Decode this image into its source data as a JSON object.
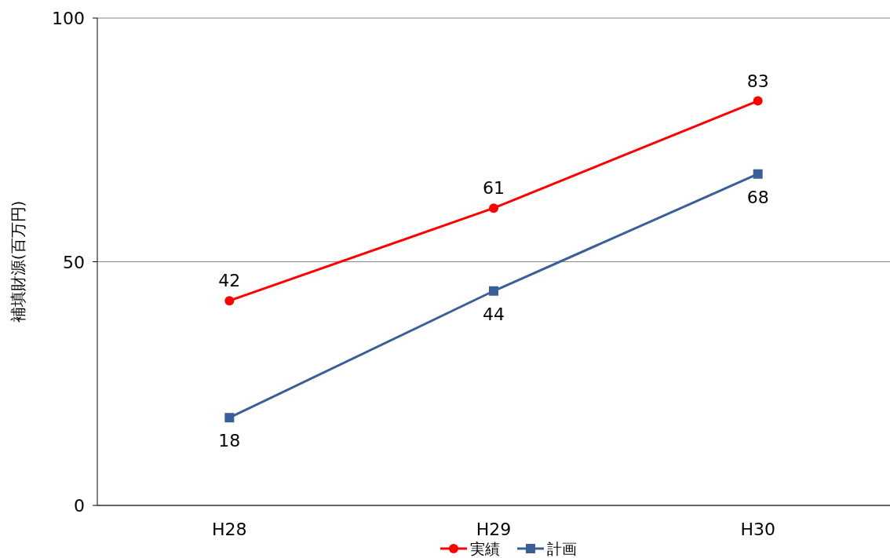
{
  "chart_data": {
    "type": "line",
    "ylabel": "補填財源(百万円)",
    "categories": [
      "H28",
      "H29",
      "H30"
    ],
    "series": [
      {
        "name": "実績",
        "color": "#ff0000",
        "values": [
          42,
          61,
          83
        ],
        "marker": "circle"
      },
      {
        "name": "計画",
        "color": "#3a5f96",
        "values": [
          18,
          44,
          68
        ],
        "marker": "square"
      }
    ],
    "ylim": [
      0,
      100
    ],
    "yticks": [
      0,
      50,
      100
    ],
    "grid": "y",
    "legend": "bottom",
    "data_labels": true
  }
}
